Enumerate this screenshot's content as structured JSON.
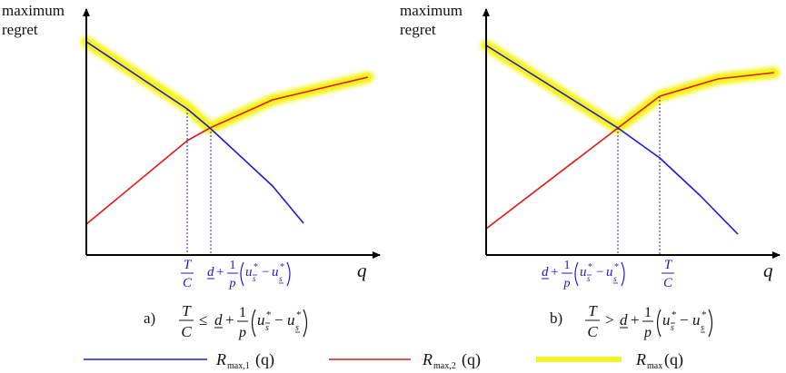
{
  "axes": {
    "ylabel_line1": "maximum",
    "ylabel_line2": "regret",
    "xlabel": "q"
  },
  "panel_a": {
    "caption_letter": "a)",
    "tick1_num": "T",
    "tick1_den": "C",
    "tick2_d": "d",
    "tick2_plus": "+",
    "tick2_frac_num": "1",
    "tick2_frac_den": "p",
    "tick2_u1": "u",
    "tick2_u1_sub": "s̄",
    "tick2_minus": "−",
    "tick2_u2": "u",
    "tick2_u2_sub": "s̲",
    "tick2_star": "*",
    "cond_relation": "≤"
  },
  "panel_b": {
    "caption_letter": "b)",
    "tick1_d": "d",
    "tick2_num": "T",
    "tick2_den": "C",
    "cond_relation": ">"
  },
  "legend": {
    "item1_R": "R",
    "item1_sub": "max,1",
    "item1_arg": "(q)",
    "item2_R": "R",
    "item2_sub": "max,2",
    "item2_arg": "(q)",
    "item3_R": "R",
    "item3_sub": "max",
    "item3_arg": "(q)"
  },
  "colors": {
    "r1": "#1a1ad6",
    "r2": "#e01818",
    "rmax_highlight": "#f6f41e",
    "guides": "#1d1dc8",
    "axis": "#000000"
  }
}
